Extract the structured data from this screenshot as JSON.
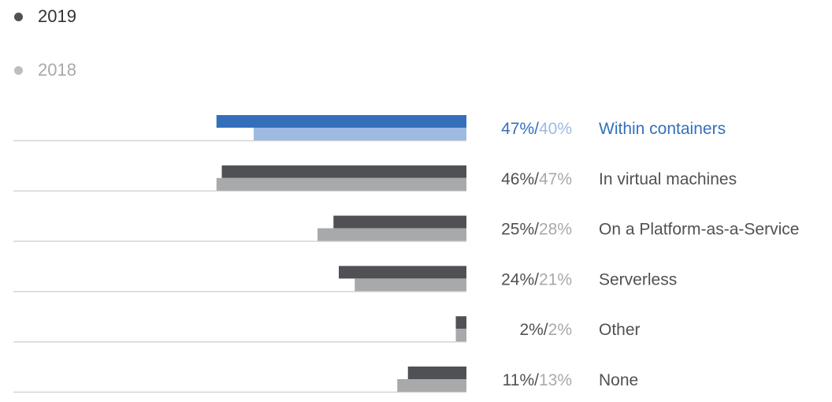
{
  "chart_data": {
    "type": "bar",
    "orientation": "horizontal",
    "legend_position": "top-left",
    "grid": false,
    "xlim": [
      0,
      100
    ],
    "series": [
      {
        "name": "2019",
        "values": [
          47,
          46,
          25,
          24,
          2,
          11
        ]
      },
      {
        "name": "2018",
        "values": [
          40,
          47,
          28,
          21,
          2,
          13
        ]
      }
    ],
    "categories": [
      "Within containers",
      "In virtual machines",
      "On a Platform-as-a-Service",
      "Serverless",
      "Other",
      "None"
    ],
    "value_labels": [
      [
        "47%",
        "40%"
      ],
      [
        "46%",
        "47%"
      ],
      [
        "25%",
        "28%"
      ],
      [
        "24%",
        "21%"
      ],
      [
        "2%",
        "2%"
      ],
      [
        "11%",
        "13%"
      ]
    ],
    "value_separator": "/",
    "highlighted_category_index": 0,
    "colors": {
      "series_2019": "#505155",
      "series_2018": "#a8a9ab",
      "highlight_2019": "#3470ba",
      "highlight_2018": "#9dbbe1",
      "label_text": "#505155",
      "label_2018_text": "#a8a9ab",
      "highlight_text": "#3470ba",
      "highlight_2018_text": "#9dbbe1",
      "baseline": "#d4d4d4"
    }
  }
}
